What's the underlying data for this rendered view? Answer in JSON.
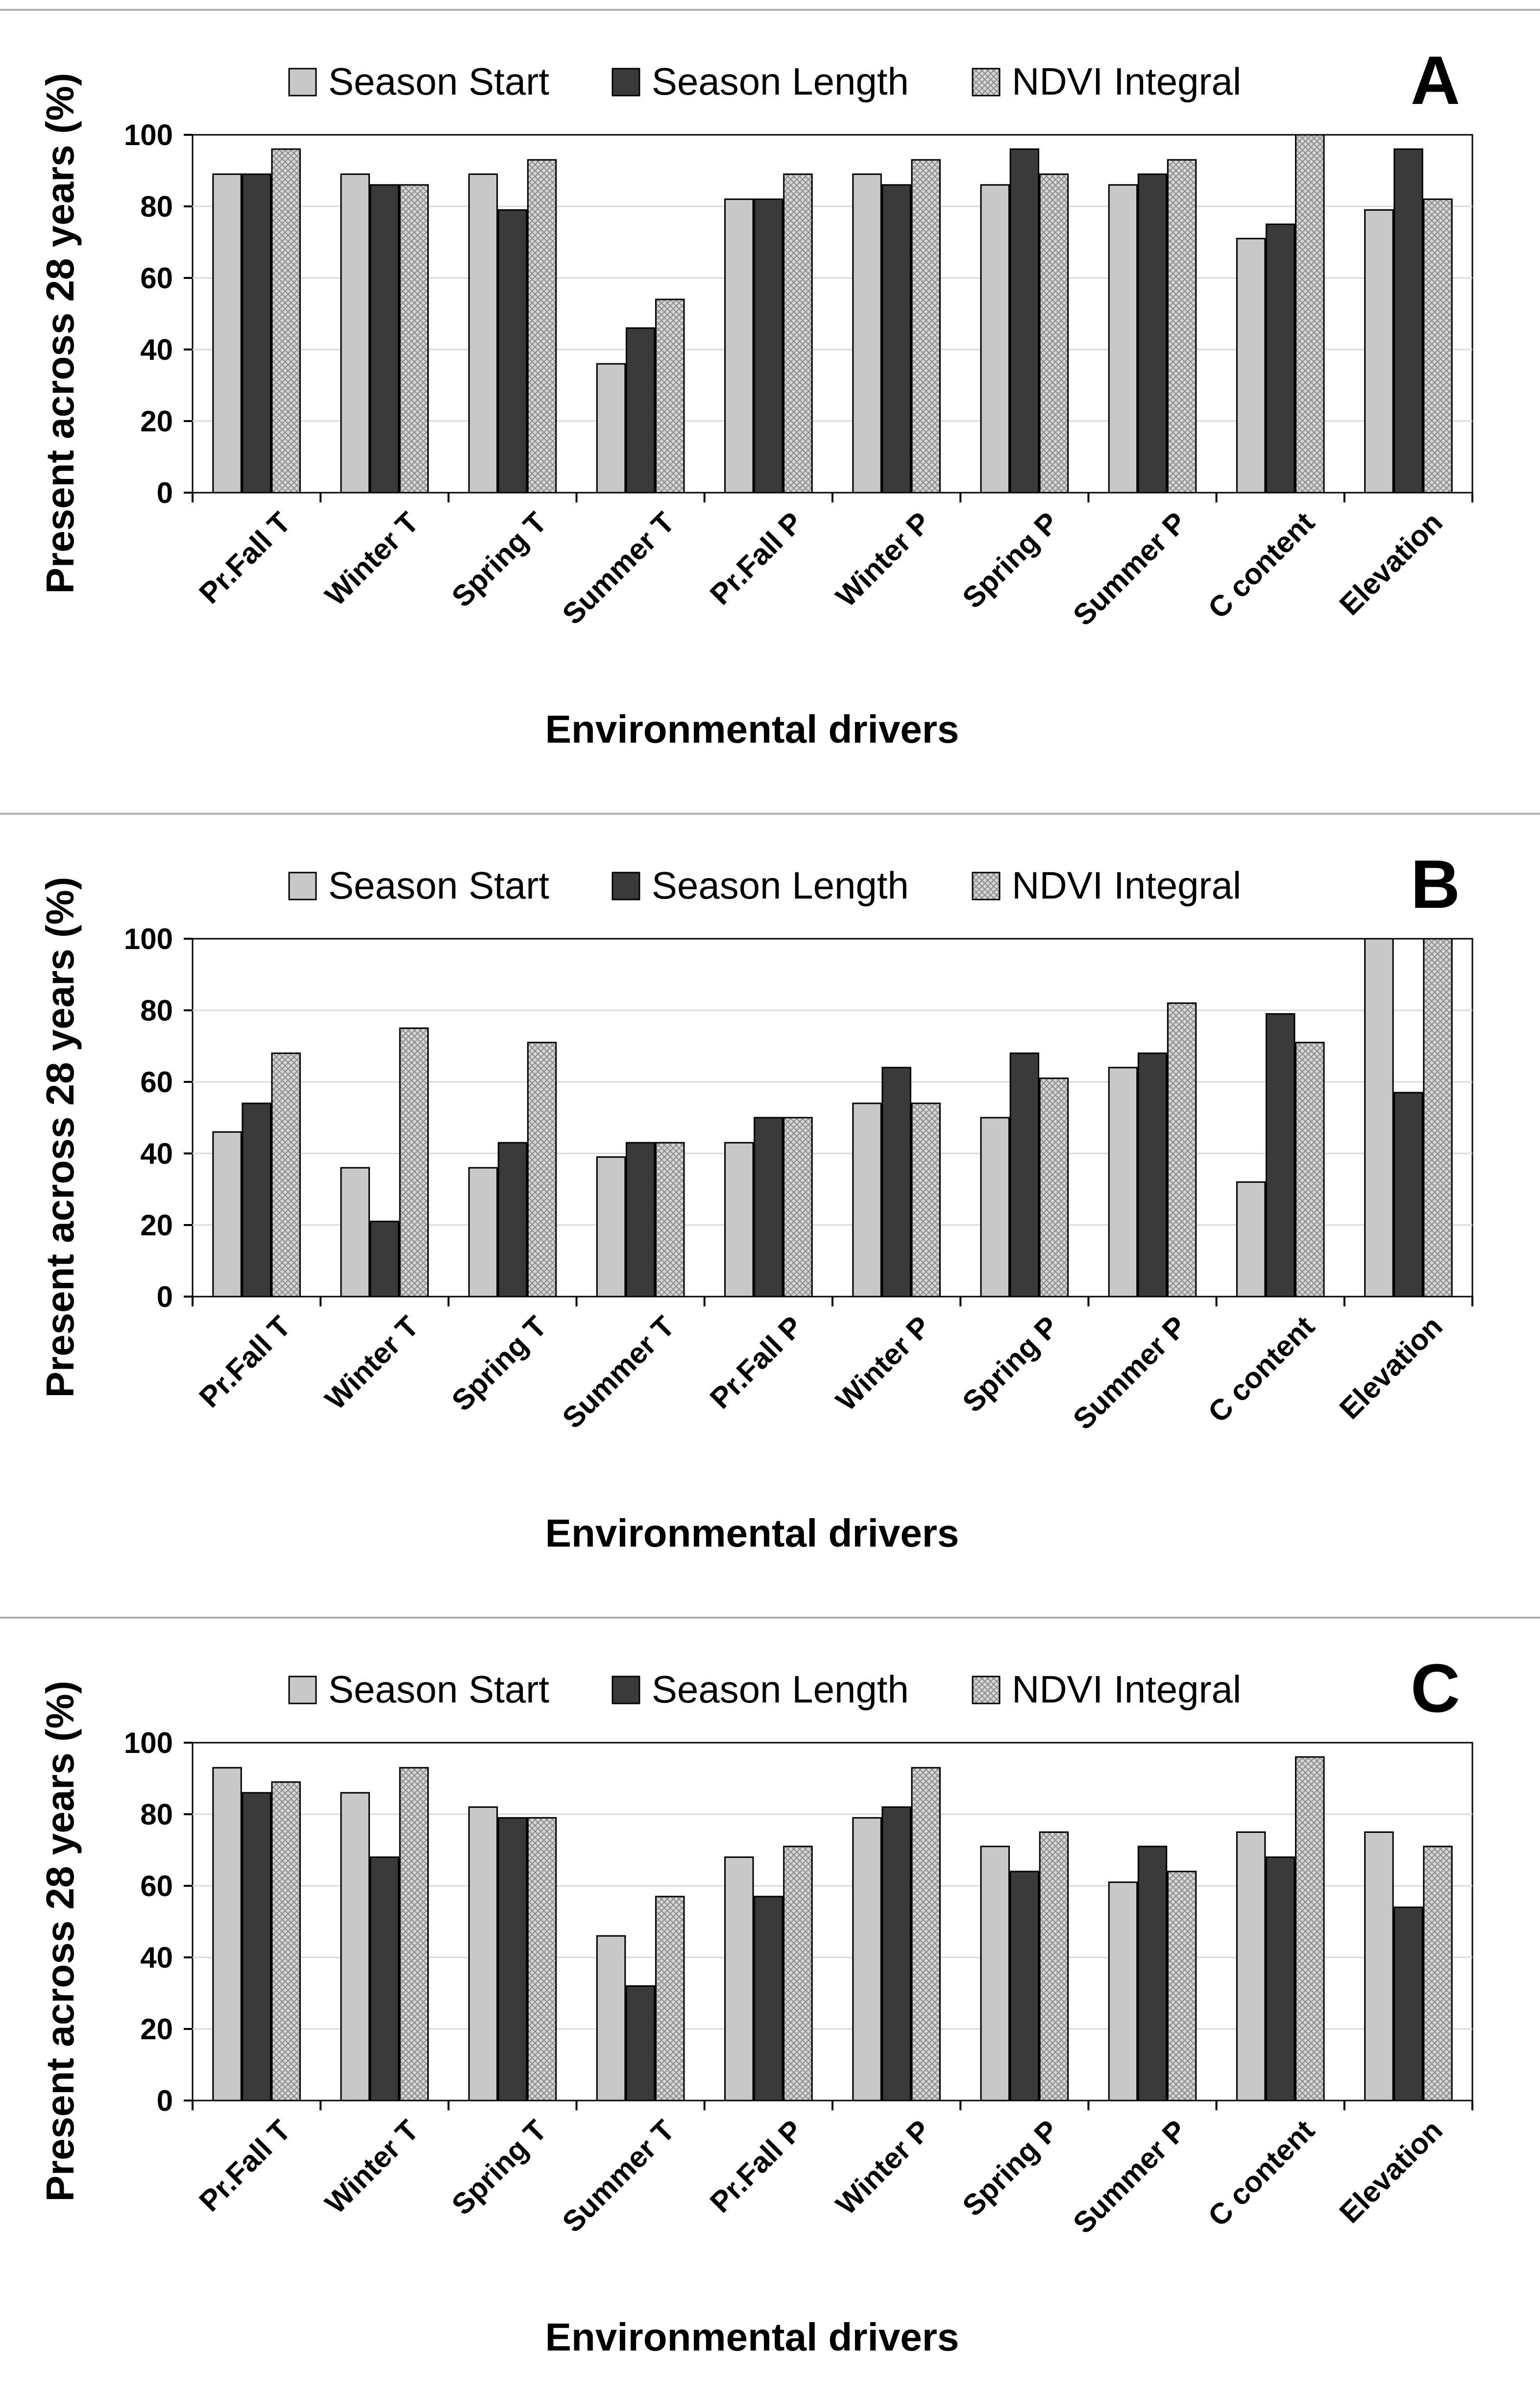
{
  "colors": {
    "season_start": "#c8c8c8",
    "season_length": "#3a3a3a",
    "ndvi_integral": "#d4d4d4",
    "ndvi_hatch": "#7a7a7a",
    "axis": "#000000",
    "gridline": "#d9d9d9",
    "separator": "#b0b0b0"
  },
  "chart_data": [
    {
      "type": "bar",
      "panel": "A",
      "ylabel": "Present across 28 years (%)",
      "xlabel": "Environmental drivers",
      "ylim": [
        0,
        100
      ],
      "yticks": [
        "0",
        "20",
        "40",
        "60",
        "80",
        "100"
      ],
      "legend": [
        "Season Start",
        "Season Length",
        "NDVI Integral"
      ],
      "categories": [
        "Pr.Fall T",
        "Winter T",
        "Spring T",
        "Summer T",
        "Pr.Fall P",
        "Winter P",
        "Spring P",
        "Summer P",
        "C content",
        "Elevation"
      ],
      "series": [
        {
          "name": "Season Start",
          "values": [
            89,
            89,
            89,
            36,
            82,
            89,
            86,
            86,
            71,
            79
          ]
        },
        {
          "name": "Season Length",
          "values": [
            89,
            86,
            79,
            46,
            82,
            86,
            96,
            89,
            75,
            96
          ]
        },
        {
          "name": "NDVI Integral",
          "values": [
            96,
            86,
            93,
            54,
            89,
            93,
            89,
            93,
            100,
            82
          ]
        }
      ]
    },
    {
      "type": "bar",
      "panel": "B",
      "ylabel": "Present across 28 years (%)",
      "xlabel": "Environmental drivers",
      "ylim": [
        0,
        100
      ],
      "yticks": [
        "0",
        "20",
        "40",
        "60",
        "80",
        "100"
      ],
      "legend": [
        "Season Start",
        "Season Length",
        "NDVI Integral"
      ],
      "categories": [
        "Pr.Fall T",
        "Winter T",
        "Spring T",
        "Summer T",
        "Pr.Fall P",
        "Winter P",
        "Spring P",
        "Summer P",
        "C content",
        "Elevation"
      ],
      "series": [
        {
          "name": "Season Start",
          "values": [
            46,
            36,
            36,
            39,
            43,
            54,
            50,
            64,
            32,
            100
          ]
        },
        {
          "name": "Season Length",
          "values": [
            54,
            21,
            43,
            43,
            50,
            64,
            68,
            68,
            79,
            57
          ]
        },
        {
          "name": "NDVI Integral",
          "values": [
            68,
            75,
            71,
            43,
            50,
            54,
            61,
            82,
            71,
            100
          ]
        }
      ]
    },
    {
      "type": "bar",
      "panel": "C",
      "ylabel": "Present across 28 years (%)",
      "xlabel": "Environmental drivers",
      "ylim": [
        0,
        100
      ],
      "yticks": [
        "0",
        "20",
        "40",
        "60",
        "80",
        "100"
      ],
      "legend": [
        "Season Start",
        "Season Length",
        "NDVI Integral"
      ],
      "categories": [
        "Pr.Fall T",
        "Winter T",
        "Spring T",
        "Summer T",
        "Pr.Fall P",
        "Winter P",
        "Spring P",
        "Summer P",
        "C content",
        "Elevation"
      ],
      "series": [
        {
          "name": "Season Start",
          "values": [
            93,
            86,
            82,
            46,
            68,
            79,
            71,
            61,
            75,
            75
          ]
        },
        {
          "name": "Season Length",
          "values": [
            86,
            68,
            79,
            32,
            57,
            82,
            64,
            71,
            68,
            54
          ]
        },
        {
          "name": "NDVI Integral",
          "values": [
            89,
            93,
            79,
            57,
            71,
            93,
            75,
            64,
            96,
            71
          ]
        }
      ]
    }
  ]
}
